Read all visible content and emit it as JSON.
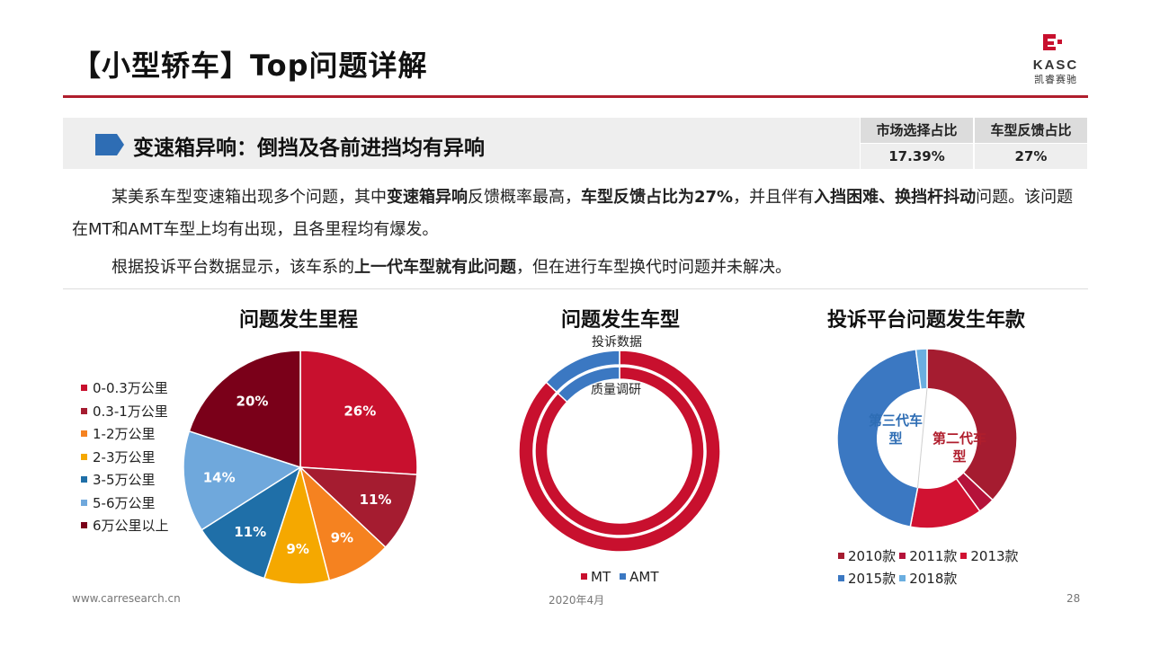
{
  "header": {
    "title": "【小型轿车】Top问题详解",
    "logo_text": "KASC",
    "logo_sub": "凯睿赛驰"
  },
  "section": {
    "heading": "变速箱异响：倒挡及各前进挡均有异响",
    "stats": {
      "headers": [
        "市场选择占比",
        "车型反馈占比"
      ],
      "values": [
        "17.39%",
        "27%"
      ]
    }
  },
  "body": {
    "p1": [
      {
        "t": "某美系车型变速箱出现多个问题，其中",
        "b": false
      },
      {
        "t": "变速箱异响",
        "b": true
      },
      {
        "t": "反馈概率最高，",
        "b": false
      },
      {
        "t": "车型反馈占比为27%",
        "b": true
      },
      {
        "t": "，并且伴有",
        "b": false
      },
      {
        "t": "入挡困难、换挡杆抖动",
        "b": true
      },
      {
        "t": "问题。该问题在MT和AMT车型上均有出现，且各里程均有爆发。",
        "b": false
      }
    ],
    "p2": [
      {
        "t": "根据投诉平台数据显示，该车系的",
        "b": false
      },
      {
        "t": "上一代车型就有此问题",
        "b": true
      },
      {
        "t": "，但在进行车型换代时问题并未解决。",
        "b": false
      }
    ]
  },
  "colors": {
    "accent": "#b01e2d",
    "section_arrow": "#2e6db4"
  },
  "chart_data": [
    {
      "type": "pie",
      "title": "问题发生里程",
      "categories": [
        "0-0.3万公里",
        "0.3-1万公里",
        "1-2万公里",
        "2-3万公里",
        "3-5万公里",
        "5-6万公里",
        "6万公里以上"
      ],
      "values": [
        26,
        11,
        9,
        9,
        11,
        14,
        20
      ],
      "labels": [
        "26%",
        "11%",
        "9%",
        "9%",
        "11%",
        "14%",
        "20%"
      ],
      "colors": [
        "#c8102e",
        "#a51c30",
        "#f58220",
        "#f5a800",
        "#1f6fa8",
        "#6fa8dc",
        "#7a0019"
      ],
      "legend": "left"
    },
    {
      "type": "donut",
      "title": "问题发生车型",
      "rings": [
        {
          "name": "投诉数据",
          "categories": [
            "MT",
            "AMT"
          ],
          "values": [
            87,
            13
          ]
        },
        {
          "name": "质量调研",
          "categories": [
            "MT",
            "AMT"
          ],
          "values": [
            87,
            13
          ]
        }
      ],
      "colors": [
        "#c8102e",
        "#3b78c2"
      ],
      "legend": "bottom"
    },
    {
      "type": "donut",
      "title": "投诉平台问题发生年款",
      "categories": [
        "2010款",
        "2011款",
        "2013款",
        "2015款",
        "2018款"
      ],
      "values": [
        37,
        3,
        13,
        45,
        2
      ],
      "colors": [
        "#a51c30",
        "#b5123a",
        "#d11232",
        "#3b78c2",
        "#6aaee0"
      ],
      "annotations": [
        "第二代车型",
        "第三代车型"
      ],
      "legend": "bottom"
    }
  ],
  "footer": {
    "website": "www.carresearch.cn",
    "date": "2020年4月",
    "page": "28"
  }
}
